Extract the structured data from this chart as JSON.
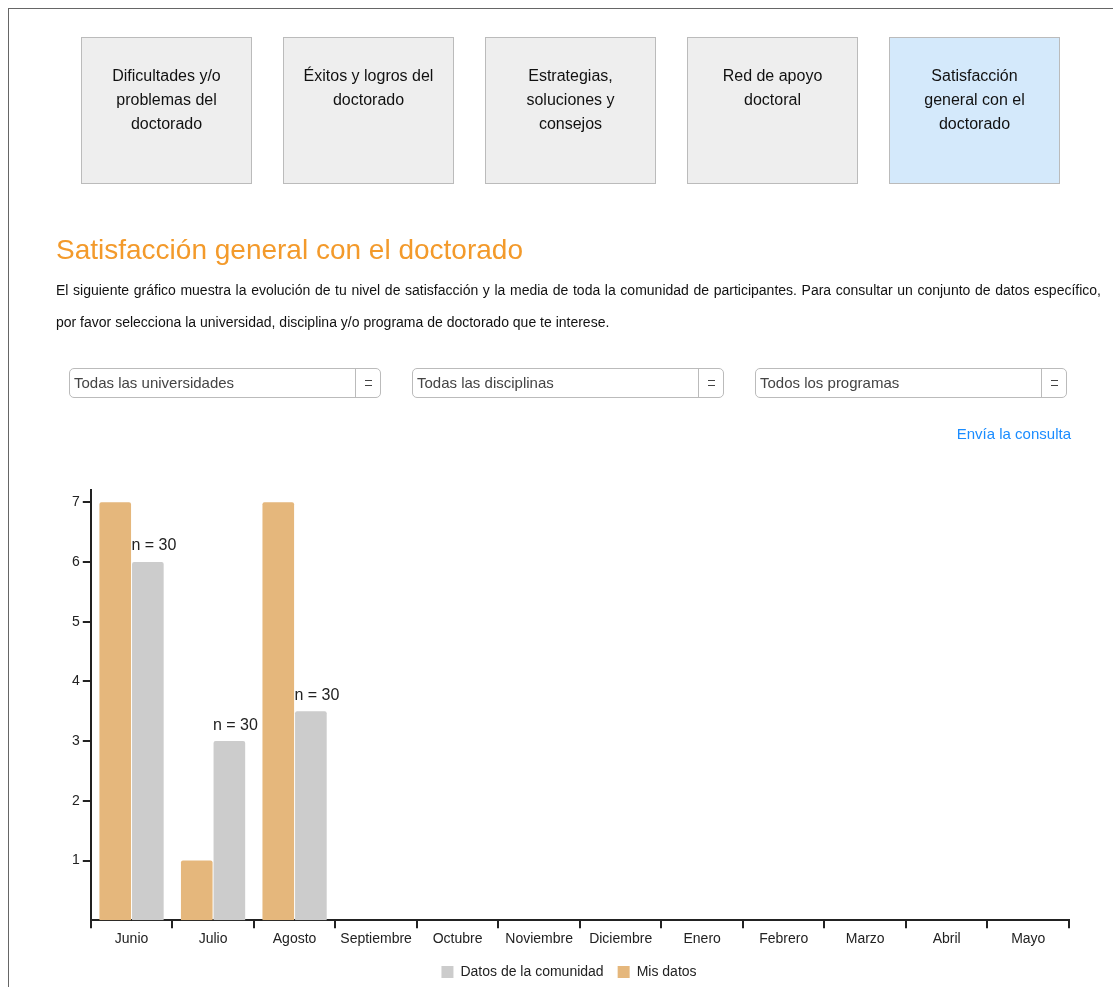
{
  "chart_data": {
    "type": "bar",
    "title": "Satisfacción general con el doctorado",
    "subtitle": "El siguiente gráfico muestra la evolución de tu nivel de satisfacción y la media de toda la comunidad de participantes. Para consultar un conjunto de datos específico, por favor selecciona la universidad, disciplina y/o programa de doctorado que te interese.",
    "categories": [
      "Junio",
      "Julio",
      "Agosto",
      "Septiembre",
      "Octubre",
      "Noviembre",
      "Diciembre",
      "Enero",
      "Febrero",
      "Marzo",
      "Abril",
      "Mayo"
    ],
    "series": [
      {
        "name": "Mis datos",
        "color": "#e5b77c",
        "values": [
          7,
          1,
          7,
          null,
          null,
          null,
          null,
          null,
          null,
          null,
          null,
          null
        ]
      },
      {
        "name": "Datos de la comunidad",
        "color": "#cccccc",
        "values": [
          6,
          3,
          3.5,
          null,
          null,
          null,
          null,
          null,
          null,
          null,
          null,
          null
        ]
      }
    ],
    "ylim": [
      0,
      7.2
    ],
    "yticks": [
      1,
      2,
      3,
      4,
      5,
      6,
      7
    ],
    "grid": false,
    "legend": "bottom",
    "annotations": [
      "Dificultades y/o problemas del doctorado",
      "Éxitos y logros del doctorado",
      "Estrategias, soluciones y consejos",
      "Red de apoyo doctoral",
      "Satisfacción general con el doctorado",
      "Todas las universidades",
      "Todas las disciplinas",
      "Todos los programas",
      "Envía la consulta",
      "n = 30",
      "n = 30",
      "n = 30"
    ]
  }
}
